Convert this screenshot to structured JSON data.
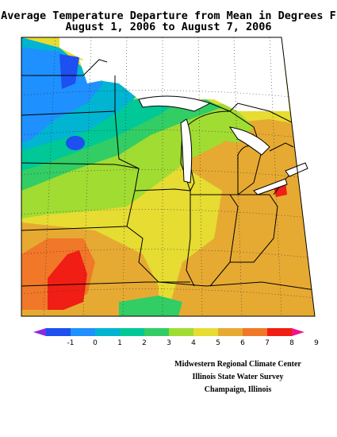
{
  "title": {
    "line1": "Average Temperature Departure from Mean in Degrees F",
    "line2": "August 1, 2006 to August 7, 2006"
  },
  "legend": {
    "ticks": [
      "-1",
      "0",
      "1",
      "2",
      "3",
      "4",
      "5",
      "6",
      "7",
      "8",
      "9"
    ],
    "colors": [
      "#8a2be2",
      "#1e4ff0",
      "#1e90ff",
      "#00b4d2",
      "#00c896",
      "#32cd64",
      "#a0dc32",
      "#e6dc32",
      "#e6aa32",
      "#f07828",
      "#f01e14",
      "#f0148c"
    ]
  },
  "credits": {
    "line1": "Midwestern Regional Climate Center",
    "line2": "Illinois State Water Survey",
    "line3": "Champaign, Illinois"
  }
}
